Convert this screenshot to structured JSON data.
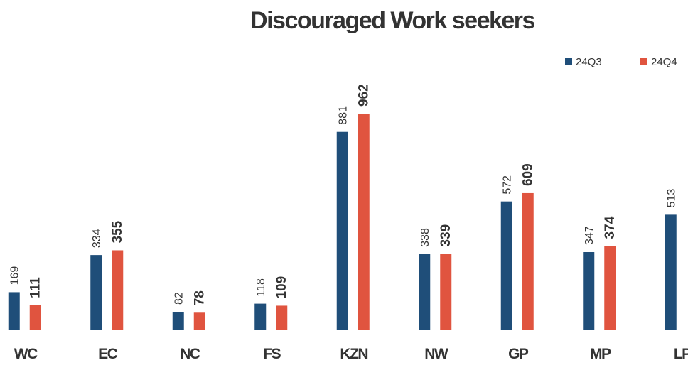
{
  "chart_data": {
    "type": "bar",
    "title": "Discouraged Work seekers",
    "categories": [
      "WC",
      "EC",
      "NC",
      "FS",
      "KZN",
      "NW",
      "GP",
      "MP",
      "LP"
    ],
    "series": [
      {
        "name": "24Q3",
        "color": "#1f4e79",
        "values": [
          169,
          334,
          82,
          118,
          881,
          338,
          572,
          347,
          513
        ]
      },
      {
        "name": "24Q4",
        "color": "#e0543f",
        "values": [
          111,
          355,
          78,
          109,
          962,
          339,
          609,
          374,
          null
        ]
      }
    ],
    "ylim": [
      0,
      1000
    ],
    "legend": "top-right",
    "grid": false
  }
}
